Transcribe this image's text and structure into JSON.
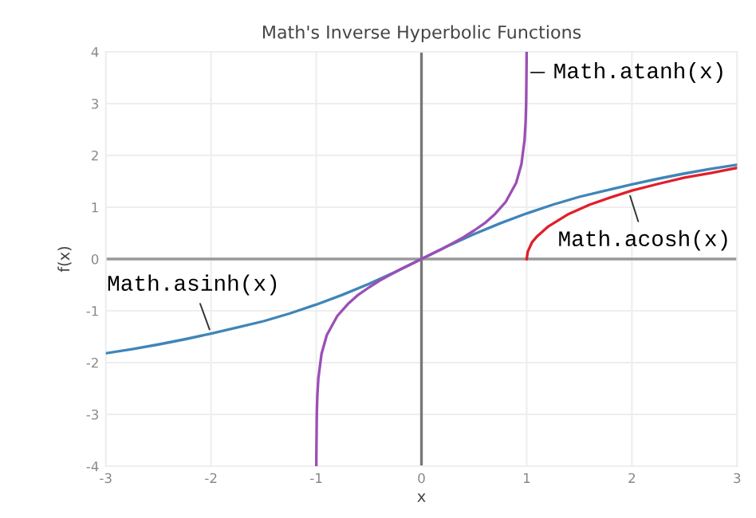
{
  "chart_data": {
    "type": "line",
    "title": "Math's Inverse Hyperbolic Functions",
    "xlabel": "x",
    "ylabel": "f(x)",
    "xlim": [
      -3,
      3
    ],
    "ylim": [
      -4,
      4
    ],
    "xticks": [
      -3,
      -2,
      -1,
      0,
      1,
      2,
      3
    ],
    "yticks": [
      -4,
      -3,
      -2,
      -1,
      0,
      1,
      2,
      3,
      4
    ],
    "grid": true,
    "legend": false,
    "marker": "none",
    "line_style": "solid",
    "ref_lines": [
      {
        "axis": "x",
        "value": 0,
        "color": "#777777"
      },
      {
        "axis": "y",
        "value": 0,
        "color": "#999999"
      }
    ],
    "series": [
      {
        "color": "#3f85b8",
        "x": [
          -3,
          -2.75,
          -2.5,
          -2.25,
          -2,
          -1.75,
          -1.5,
          -1.25,
          -1,
          -0.75,
          -0.5,
          -0.25,
          0,
          0.25,
          0.5,
          0.75,
          1,
          1.25,
          1.5,
          1.75,
          2,
          2.25,
          2.5,
          2.75,
          3
        ],
        "values": [
          -1.82,
          -1.74,
          -1.65,
          -1.55,
          -1.44,
          -1.32,
          -1.2,
          -1.05,
          -0.88,
          -0.69,
          -0.48,
          -0.25,
          0,
          0.25,
          0.48,
          0.69,
          0.88,
          1.05,
          1.2,
          1.32,
          1.44,
          1.55,
          1.65,
          1.74,
          1.82
        ]
      },
      {
        "color": "#9b4fb5",
        "x": [
          -0.9993,
          -0.999,
          -0.995,
          -0.99,
          -0.98,
          -0.95,
          -0.9,
          -0.8,
          -0.7,
          -0.6,
          -0.5,
          -0.4,
          -0.3,
          -0.2,
          -0.1,
          0,
          0.1,
          0.2,
          0.3,
          0.4,
          0.5,
          0.6,
          0.7,
          0.8,
          0.9,
          0.95,
          0.98,
          0.99,
          0.995,
          0.999,
          0.9993
        ],
        "values": [
          -4,
          -3.8,
          -3,
          -2.65,
          -2.3,
          -1.83,
          -1.47,
          -1.1,
          -0.87,
          -0.69,
          -0.55,
          -0.42,
          -0.31,
          -0.2,
          -0.1,
          0,
          0.1,
          0.2,
          0.31,
          0.42,
          0.55,
          0.69,
          0.87,
          1.1,
          1.47,
          1.83,
          2.3,
          2.65,
          3,
          3.8,
          4
        ]
      },
      {
        "color": "#e0202a",
        "x": [
          1,
          1.01,
          1.05,
          1.1,
          1.2,
          1.4,
          1.6,
          1.8,
          2,
          2.25,
          2.5,
          2.75,
          3
        ],
        "values": [
          0,
          0.14,
          0.32,
          0.44,
          0.62,
          0.87,
          1.05,
          1.19,
          1.32,
          1.45,
          1.57,
          1.66,
          1.76
        ]
      }
    ],
    "annotations": [
      {
        "text": "Math.atanh(x)",
        "x": 0.999,
        "y": 3.6
      },
      {
        "text": "Math.acosh(x)",
        "x": 1.97,
        "y": 1.3
      },
      {
        "text": "Math.asinh(x)",
        "x": -2,
        "y": -1.44
      }
    ]
  }
}
